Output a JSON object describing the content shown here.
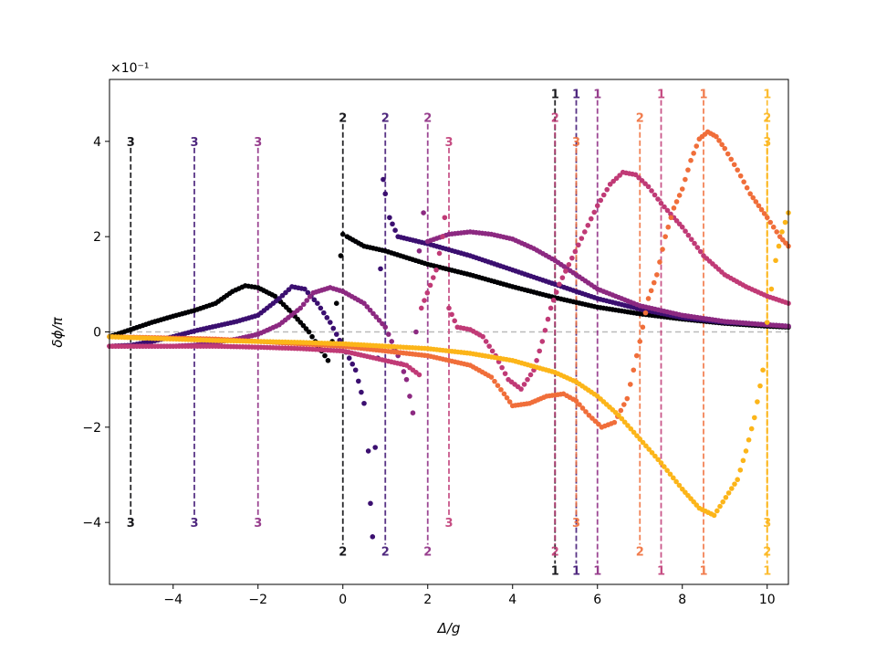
{
  "chart_data": {
    "type": "scatter",
    "title": "",
    "xlabel": "Δ/g",
    "ylabel": "δϕ/π",
    "y_multiplier_label": "×10⁻¹",
    "xlim": [
      -5.5,
      10.5
    ],
    "ylim": [
      -5.3,
      5.3
    ],
    "x_ticks": [
      -4,
      -2,
      0,
      2,
      4,
      6,
      8,
      10
    ],
    "y_ticks": [
      -4,
      -2,
      0,
      2,
      4
    ],
    "x_tick_labels": [
      "−4",
      "−2",
      "0",
      "2",
      "4",
      "6",
      "8",
      "10"
    ],
    "y_tick_labels": [
      "−4",
      "−2",
      "0",
      "2",
      "4"
    ],
    "grid": false,
    "zero_line": {
      "y": 0,
      "color": "#bbbbbb"
    },
    "series": [
      {
        "color": "#000004",
        "points": [
          [
            -5.5,
            -0.1
          ],
          [
            -5.0,
            0.05
          ],
          [
            -4.5,
            0.2
          ],
          [
            -4.0,
            0.33
          ],
          [
            -3.5,
            0.45
          ],
          [
            -3.0,
            0.6
          ],
          [
            -2.6,
            0.85
          ],
          [
            -2.3,
            0.97
          ],
          [
            -2.0,
            0.93
          ],
          [
            -1.6,
            0.75
          ],
          [
            -1.2,
            0.4
          ],
          [
            -0.8,
            0.0
          ],
          [
            -0.5,
            -0.4
          ],
          [
            -0.35,
            -0.6
          ],
          [
            -0.25,
            -0.2
          ],
          [
            -0.15,
            0.6
          ],
          [
            -0.05,
            1.6
          ],
          [
            0.0,
            2.05
          ],
          [
            0.1,
            2.0
          ],
          [
            0.5,
            1.8
          ],
          [
            1.0,
            1.7
          ],
          [
            2.0,
            1.42
          ],
          [
            3.0,
            1.2
          ],
          [
            4.0,
            0.95
          ],
          [
            5.0,
            0.72
          ],
          [
            6.0,
            0.52
          ],
          [
            7.0,
            0.38
          ],
          [
            8.0,
            0.27
          ],
          [
            9.0,
            0.18
          ],
          [
            10.0,
            0.12
          ],
          [
            10.5,
            0.1
          ]
        ],
        "markers": [
          {
            "x": -5.0,
            "labels": [
              "3",
              "3"
            ],
            "top": 4.0,
            "bottom": -4.0
          },
          {
            "x": 0.0,
            "labels": [
              "2",
              "2"
            ],
            "top": 4.5,
            "bottom": -4.6
          },
          {
            "x": 5.0,
            "labels": [
              "1",
              "1"
            ],
            "top": 5.0,
            "bottom": -5.0
          }
        ]
      },
      {
        "color": "#3b0f70",
        "points": [
          [
            -5.5,
            -0.3
          ],
          [
            -5.0,
            -0.28
          ],
          [
            -4.5,
            -0.2
          ],
          [
            -4.0,
            -0.1
          ],
          [
            -3.5,
            0.02
          ],
          [
            -3.0,
            0.12
          ],
          [
            -2.5,
            0.22
          ],
          [
            -2.0,
            0.35
          ],
          [
            -1.5,
            0.7
          ],
          [
            -1.2,
            0.95
          ],
          [
            -0.9,
            0.9
          ],
          [
            -0.6,
            0.6
          ],
          [
            -0.3,
            0.2
          ],
          [
            0.0,
            -0.3
          ],
          [
            0.3,
            -0.8
          ],
          [
            0.5,
            -1.5
          ],
          [
            0.6,
            -2.5
          ],
          [
            0.65,
            -3.6
          ],
          [
            0.7,
            -4.3
          ],
          [
            0.95,
            3.2
          ],
          [
            1.0,
            2.9
          ],
          [
            1.1,
            2.4
          ],
          [
            1.3,
            2.0
          ],
          [
            2.0,
            1.85
          ],
          [
            3.0,
            1.6
          ],
          [
            4.0,
            1.3
          ],
          [
            5.0,
            1.0
          ],
          [
            6.0,
            0.7
          ],
          [
            7.0,
            0.48
          ],
          [
            8.0,
            0.3
          ],
          [
            9.0,
            0.2
          ],
          [
            10.0,
            0.15
          ],
          [
            10.5,
            0.12
          ]
        ],
        "markers": [
          {
            "x": -3.5,
            "labels": [
              "3",
              "3"
            ],
            "top": 4.0,
            "bottom": -4.0
          },
          {
            "x": 1.0,
            "labels": [
              "2",
              "2"
            ],
            "top": 4.5,
            "bottom": -4.6
          },
          {
            "x": 5.5,
            "labels": [
              "1",
              "1"
            ],
            "top": 5.0,
            "bottom": -5.0
          }
        ]
      },
      {
        "color": "#8c2981",
        "points": [
          [
            -5.5,
            -0.3
          ],
          [
            -5.0,
            -0.3
          ],
          [
            -4.0,
            -0.3
          ],
          [
            -3.5,
            -0.28
          ],
          [
            -3.0,
            -0.22
          ],
          [
            -2.5,
            -0.15
          ],
          [
            -2.0,
            -0.05
          ],
          [
            -1.5,
            0.15
          ],
          [
            -1.0,
            0.5
          ],
          [
            -0.7,
            0.82
          ],
          [
            -0.3,
            0.93
          ],
          [
            0.0,
            0.85
          ],
          [
            0.5,
            0.6
          ],
          [
            1.0,
            0.1
          ],
          [
            1.3,
            -0.5
          ],
          [
            1.5,
            -1.0
          ],
          [
            1.65,
            -1.7
          ],
          [
            1.8,
            1.7
          ],
          [
            1.9,
            2.5
          ],
          [
            2.0,
            1.9
          ],
          [
            2.5,
            2.05
          ],
          [
            3.0,
            2.1
          ],
          [
            3.5,
            2.05
          ],
          [
            4.0,
            1.95
          ],
          [
            4.5,
            1.75
          ],
          [
            5.0,
            1.5
          ],
          [
            5.5,
            1.2
          ],
          [
            6.0,
            0.9
          ],
          [
            7.0,
            0.55
          ],
          [
            8.0,
            0.35
          ],
          [
            9.0,
            0.22
          ],
          [
            10.0,
            0.15
          ],
          [
            10.5,
            0.12
          ]
        ],
        "markers": [
          {
            "x": -2.0,
            "labels": [
              "3",
              "3"
            ],
            "top": 4.0,
            "bottom": -4.0
          },
          {
            "x": 2.0,
            "labels": [
              "2",
              "2"
            ],
            "top": 4.5,
            "bottom": -4.6
          },
          {
            "x": 6.0,
            "labels": [
              "1",
              "1"
            ],
            "top": 5.0,
            "bottom": -5.0
          }
        ]
      },
      {
        "color": "#c03a76",
        "points": [
          [
            -5.5,
            -0.3
          ],
          [
            -4.0,
            -0.3
          ],
          [
            -3.0,
            -0.3
          ],
          [
            -2.0,
            -0.32
          ],
          [
            -1.0,
            -0.35
          ],
          [
            0.0,
            -0.4
          ],
          [
            0.5,
            -0.5
          ],
          [
            1.0,
            -0.6
          ],
          [
            1.5,
            -0.7
          ],
          [
            1.8,
            -0.9
          ],
          [
            1.85,
            0.5
          ],
          [
            2.2,
            1.3
          ],
          [
            2.35,
            2.0
          ],
          [
            2.4,
            2.4
          ],
          [
            2.5,
            0.5
          ],
          [
            2.7,
            0.1
          ],
          [
            3.0,
            0.05
          ],
          [
            3.3,
            -0.1
          ],
          [
            3.6,
            -0.5
          ],
          [
            3.9,
            -1.0
          ],
          [
            4.2,
            -1.2
          ],
          [
            4.5,
            -0.8
          ],
          [
            4.7,
            -0.2
          ],
          [
            4.9,
            0.5
          ],
          [
            5.1,
            1.0
          ],
          [
            5.4,
            1.55
          ],
          [
            5.7,
            2.1
          ],
          [
            6.0,
            2.65
          ],
          [
            6.3,
            3.1
          ],
          [
            6.6,
            3.35
          ],
          [
            6.9,
            3.3
          ],
          [
            7.2,
            3.05
          ],
          [
            7.5,
            2.7
          ],
          [
            7.8,
            2.4
          ],
          [
            8.0,
            2.2
          ],
          [
            8.5,
            1.6
          ],
          [
            9.0,
            1.2
          ],
          [
            9.5,
            0.95
          ],
          [
            10.0,
            0.75
          ],
          [
            10.5,
            0.6
          ]
        ],
        "markers": [
          {
            "x": 2.5,
            "labels": [
              "3",
              "3"
            ],
            "top": 4.0,
            "bottom": -4.0
          },
          {
            "x": 5.0,
            "labels": [
              "2",
              "2"
            ],
            "top": 4.5,
            "bottom": -4.6
          },
          {
            "x": 7.5,
            "labels": [
              "1",
              "1"
            ],
            "top": 5.0,
            "bottom": -5.0
          }
        ]
      },
      {
        "color": "#f06e3a",
        "points": [
          [
            -5.5,
            -0.1
          ],
          [
            -4.0,
            -0.13
          ],
          [
            -3.0,
            -0.15
          ],
          [
            -2.0,
            -0.2
          ],
          [
            -1.0,
            -0.25
          ],
          [
            0.0,
            -0.3
          ],
          [
            1.0,
            -0.4
          ],
          [
            2.0,
            -0.5
          ],
          [
            3.0,
            -0.7
          ],
          [
            3.5,
            -0.95
          ],
          [
            3.8,
            -1.3
          ],
          [
            4.0,
            -1.55
          ],
          [
            4.4,
            -1.5
          ],
          [
            4.8,
            -1.35
          ],
          [
            5.2,
            -1.3
          ],
          [
            5.5,
            -1.45
          ],
          [
            5.8,
            -1.75
          ],
          [
            6.1,
            -2.0
          ],
          [
            6.4,
            -1.9
          ],
          [
            6.7,
            -1.4
          ],
          [
            7.0,
            -0.2
          ],
          [
            7.2,
            0.7
          ],
          [
            7.4,
            1.2
          ],
          [
            7.6,
            2.0
          ],
          [
            7.8,
            2.6
          ],
          [
            8.0,
            3.0
          ],
          [
            8.2,
            3.6
          ],
          [
            8.4,
            4.05
          ],
          [
            8.6,
            4.2
          ],
          [
            8.8,
            4.1
          ],
          [
            9.0,
            3.85
          ],
          [
            9.3,
            3.4
          ],
          [
            9.6,
            2.9
          ],
          [
            10.0,
            2.4
          ],
          [
            10.3,
            2.0
          ],
          [
            10.5,
            1.8
          ]
        ],
        "markers": [
          {
            "x": 5.5,
            "labels": [
              "3",
              "3"
            ],
            "top": 4.0,
            "bottom": -4.0
          },
          {
            "x": 7.0,
            "labels": [
              "2",
              "2"
            ],
            "top": 4.5,
            "bottom": -4.6
          },
          {
            "x": 8.5,
            "labels": [
              "1",
              "1"
            ],
            "top": 5.0,
            "bottom": -5.0
          }
        ]
      },
      {
        "color": "#fcb519",
        "points": [
          [
            -5.5,
            -0.1
          ],
          [
            -5.0,
            -0.12
          ],
          [
            -4.0,
            -0.15
          ],
          [
            -3.0,
            -0.18
          ],
          [
            -2.0,
            -0.2
          ],
          [
            -1.0,
            -0.22
          ],
          [
            0.0,
            -0.25
          ],
          [
            1.0,
            -0.3
          ],
          [
            2.0,
            -0.35
          ],
          [
            3.0,
            -0.45
          ],
          [
            4.0,
            -0.6
          ],
          [
            5.0,
            -0.85
          ],
          [
            5.5,
            -1.05
          ],
          [
            6.0,
            -1.35
          ],
          [
            6.5,
            -1.75
          ],
          [
            7.0,
            -2.25
          ],
          [
            7.5,
            -2.75
          ],
          [
            8.0,
            -3.3
          ],
          [
            8.4,
            -3.7
          ],
          [
            8.75,
            -3.85
          ],
          [
            9.3,
            -3.1
          ],
          [
            9.5,
            -2.5
          ],
          [
            9.7,
            -1.8
          ],
          [
            9.9,
            -0.8
          ],
          [
            10.0,
            0.2
          ],
          [
            10.1,
            0.9
          ],
          [
            10.2,
            1.5
          ],
          [
            10.35,
            2.1
          ],
          [
            10.5,
            2.5
          ]
        ],
        "markers": [
          {
            "x": 10.0,
            "labels": [
              "3",
              "3"
            ],
            "top": 4.0,
            "bottom": -4.0
          },
          {
            "x": 10.0,
            "labels": [
              "2",
              "2"
            ],
            "top": 4.5,
            "bottom": -4.6
          },
          {
            "x": 10.0,
            "labels": [
              "1",
              "1"
            ],
            "top": 5.0,
            "bottom": -5.0
          }
        ]
      }
    ]
  }
}
